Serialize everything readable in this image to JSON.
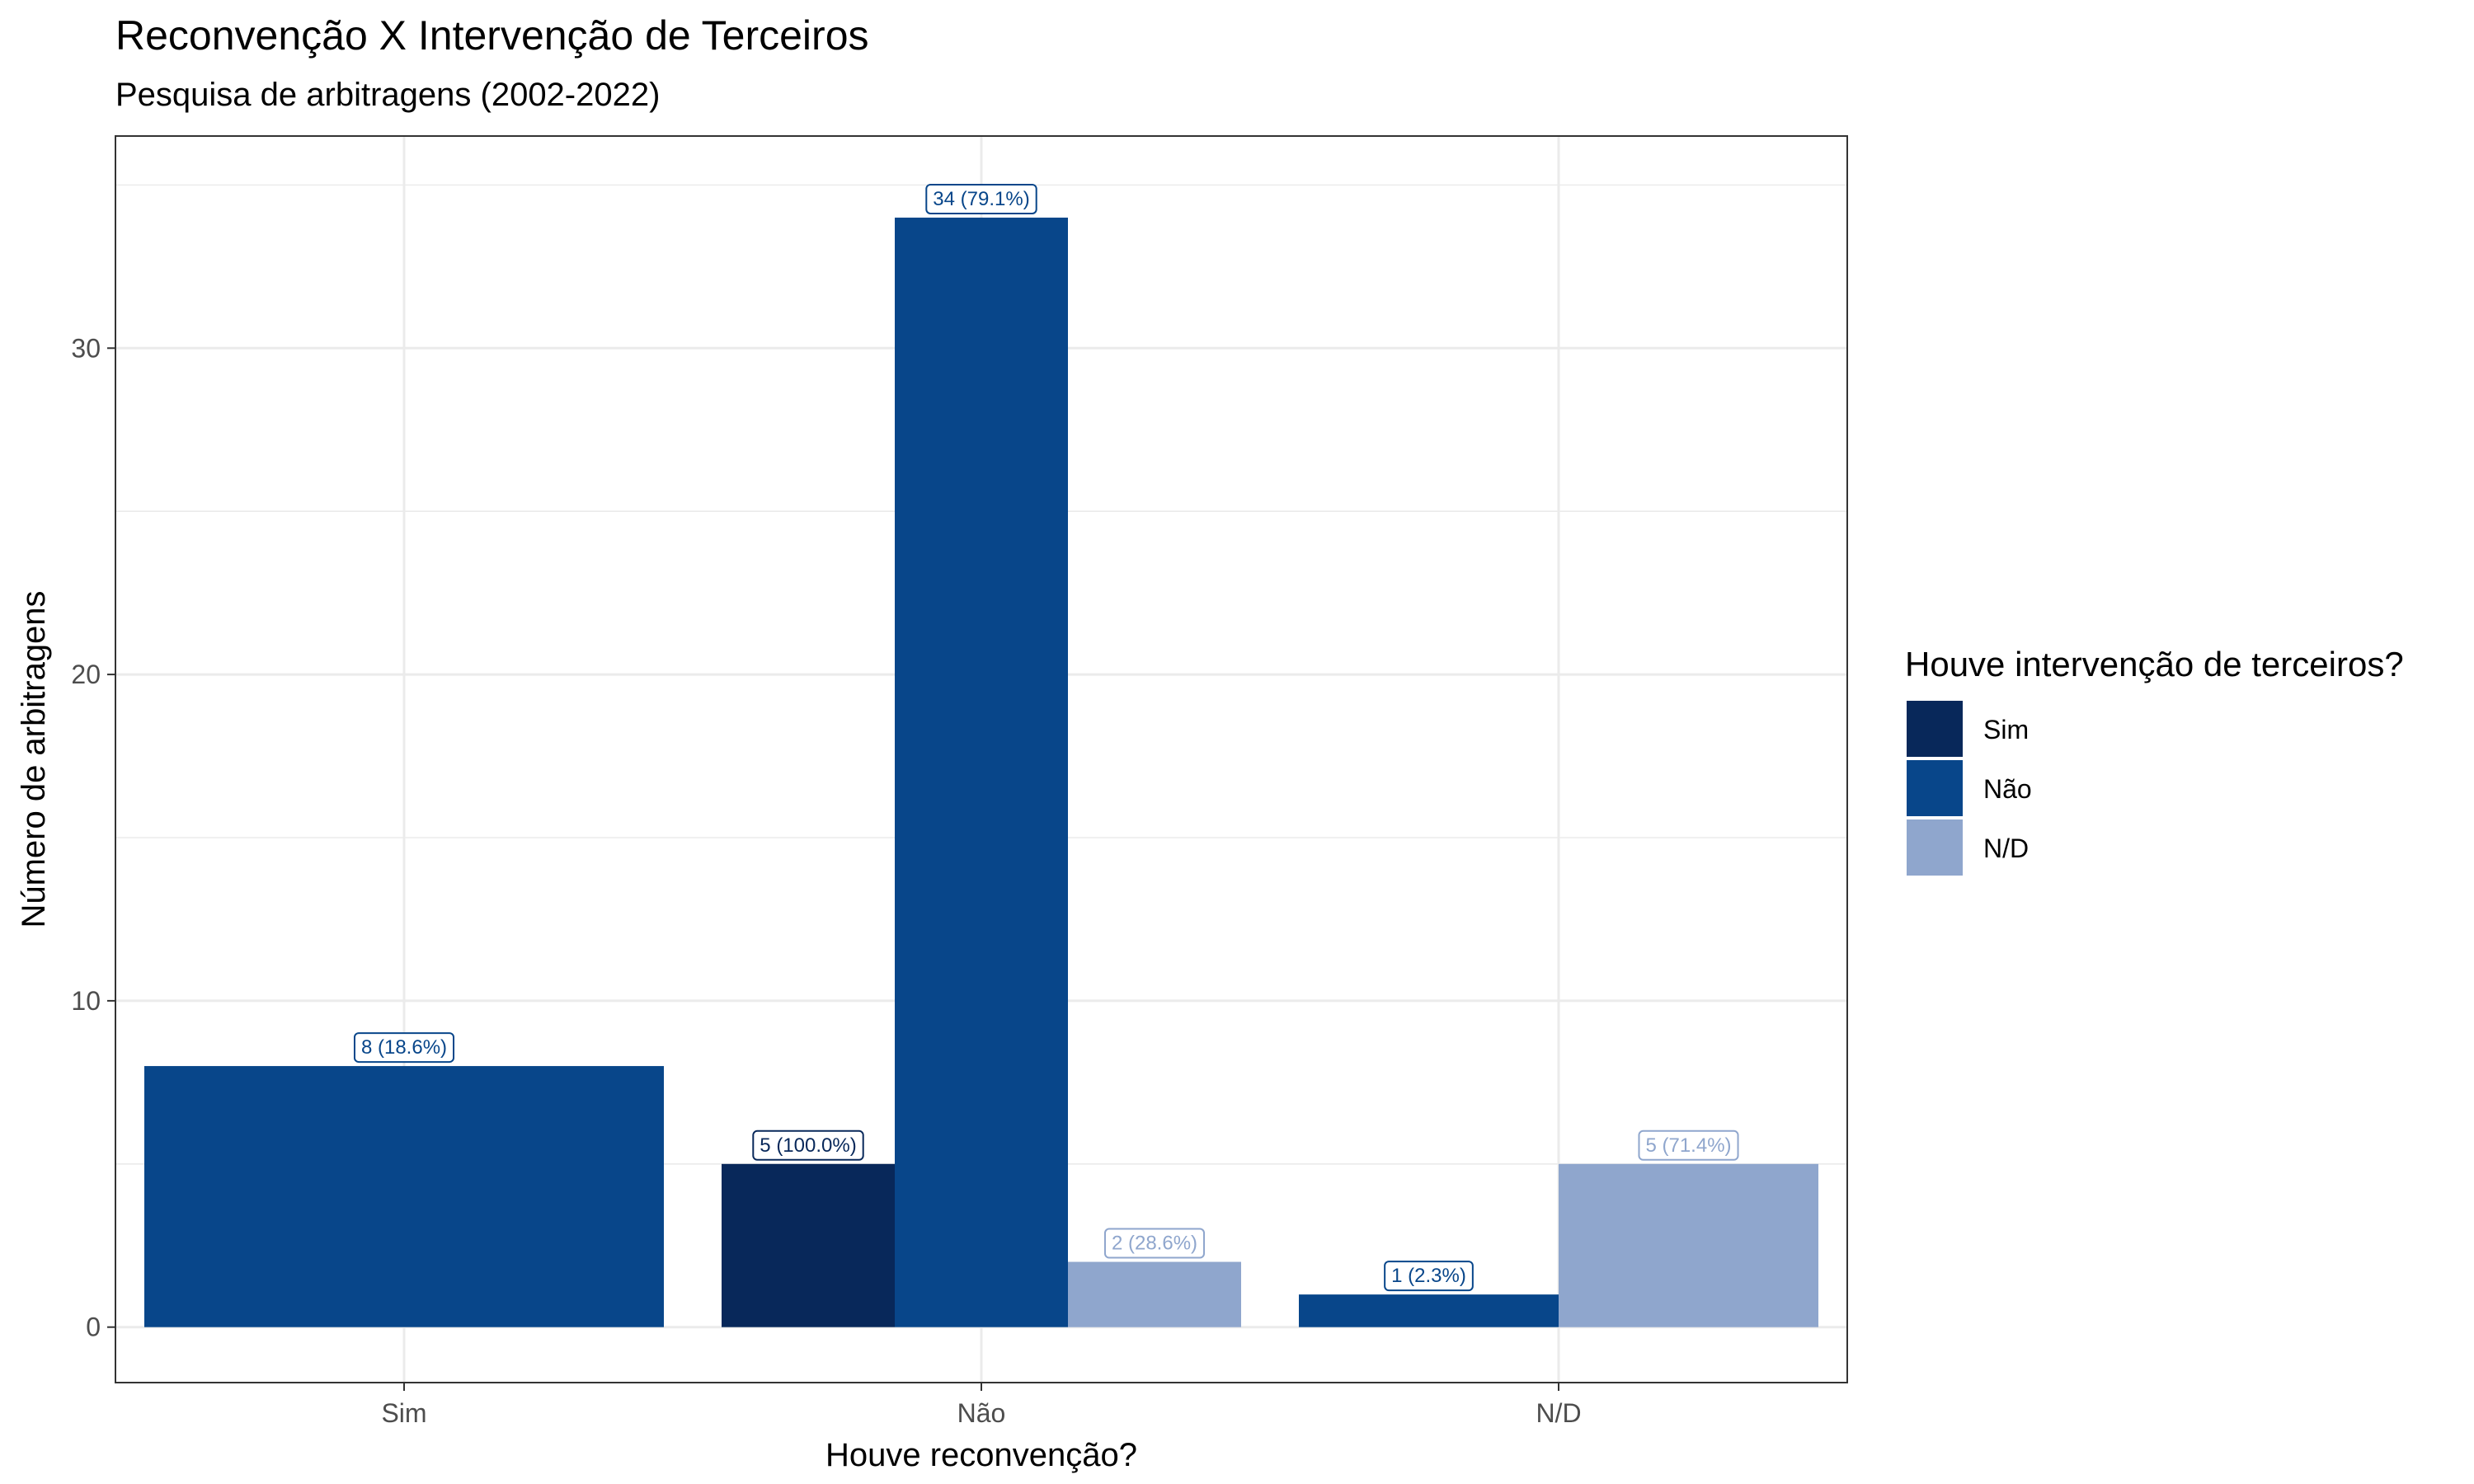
{
  "chart_data": {
    "type": "bar",
    "title": "Reconvenção X Intervenção de Terceiros",
    "subtitle": "Pesquisa de arbitragens (2002-2022)",
    "xlabel": "Houve reconvenção?",
    "ylabel": "Número de arbitragens",
    "categories": [
      "Sim",
      "Não",
      "N/D"
    ],
    "yticks": [
      0,
      10,
      20,
      30
    ],
    "ylim": [
      -1.7,
      36.5
    ],
    "grid": true,
    "legend": {
      "title": "Houve intervenção de terceiros?",
      "position": "right"
    },
    "series": [
      {
        "name": "Sim",
        "color": "#08285a",
        "values": [
          null,
          5,
          null
        ],
        "labels": [
          null,
          "5 (100.0%)",
          null
        ]
      },
      {
        "name": "Não",
        "color": "#08468a",
        "values": [
          8,
          34,
          1
        ],
        "labels": [
          "8 (18.6%)",
          "34 (79.1%)",
          "1 (2.3%)"
        ]
      },
      {
        "name": "N/D",
        "color": "#8fa6cd",
        "values": [
          null,
          2,
          5
        ],
        "labels": [
          null,
          "2 (28.6%)",
          "5 (71.4%)"
        ]
      }
    ]
  }
}
